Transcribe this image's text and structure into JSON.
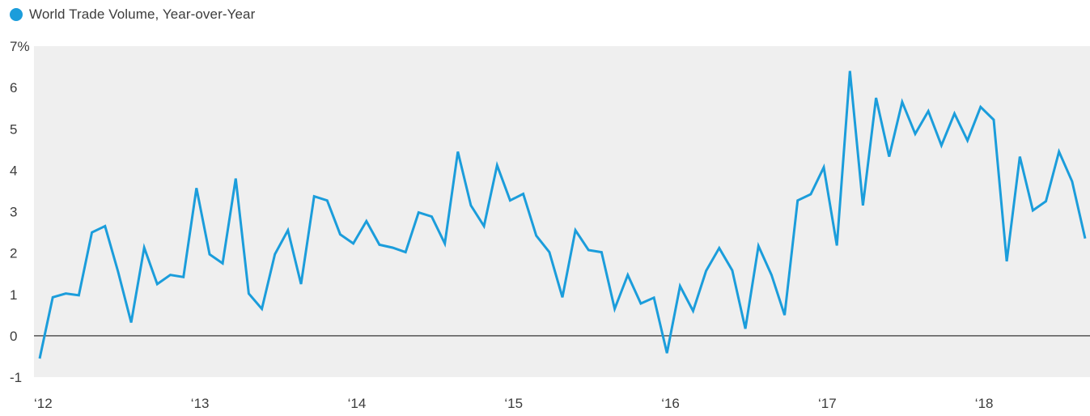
{
  "legend": {
    "label": "World Trade Volume, Year-over-Year",
    "color": "#1b9ddb"
  },
  "chart_data": {
    "type": "line",
    "title": "",
    "xlabel": "",
    "ylabel": "",
    "ylim": [
      -1,
      7
    ],
    "y_ticks": [
      -1,
      0,
      1,
      2,
      3,
      4,
      5,
      6,
      7
    ],
    "y_tick_labels": [
      "-1",
      "0",
      "1",
      "2",
      "3",
      "4",
      "5",
      "6",
      "7%"
    ],
    "x_ticks": [
      "‘12",
      "‘13",
      "‘14",
      "‘15",
      "‘16",
      "‘17",
      "‘18"
    ],
    "x_range": [
      "2012-01",
      "2018-09"
    ],
    "grid": false,
    "zero_line": true,
    "plot_background": "#efefef",
    "line_color": "#1b9ddb",
    "zero_line_color": "#555555",
    "series": [
      {
        "name": "World Trade Volume, Year-over-Year",
        "x": [
          "2012-01",
          "2012-02",
          "2012-03",
          "2012-04",
          "2012-05",
          "2012-06",
          "2012-07",
          "2012-08",
          "2012-09",
          "2012-10",
          "2012-11",
          "2012-12",
          "2013-01",
          "2013-02",
          "2013-03",
          "2013-04",
          "2013-05",
          "2013-06",
          "2013-07",
          "2013-08",
          "2013-09",
          "2013-10",
          "2013-11",
          "2013-12",
          "2014-01",
          "2014-02",
          "2014-03",
          "2014-04",
          "2014-05",
          "2014-06",
          "2014-07",
          "2014-08",
          "2014-09",
          "2014-10",
          "2014-11",
          "2014-12",
          "2015-01",
          "2015-02",
          "2015-03",
          "2015-04",
          "2015-05",
          "2015-06",
          "2015-07",
          "2015-08",
          "2015-09",
          "2015-10",
          "2015-11",
          "2015-12",
          "2016-01",
          "2016-02",
          "2016-03",
          "2016-04",
          "2016-05",
          "2016-06",
          "2016-07",
          "2016-08",
          "2016-09",
          "2016-10",
          "2016-11",
          "2016-12",
          "2017-01",
          "2017-02",
          "2017-03",
          "2017-04",
          "2017-05",
          "2017-06",
          "2017-07",
          "2017-08",
          "2017-09",
          "2017-10",
          "2017-11",
          "2017-12",
          "2018-01",
          "2018-02",
          "2018-03",
          "2018-04",
          "2018-05",
          "2018-06",
          "2018-07",
          "2018-08",
          "2018-09"
        ],
        "values": [
          -0.55,
          0.93,
          1.02,
          0.98,
          2.5,
          2.65,
          1.55,
          0.32,
          2.13,
          1.25,
          1.47,
          1.42,
          3.57,
          1.97,
          1.75,
          3.8,
          1.02,
          0.65,
          1.97,
          2.55,
          1.25,
          3.37,
          3.27,
          2.45,
          2.23,
          2.77,
          2.2,
          2.13,
          2.02,
          2.98,
          2.88,
          2.23,
          4.45,
          3.15,
          2.65,
          4.12,
          3.27,
          3.43,
          2.42,
          2.02,
          0.93,
          2.55,
          2.07,
          2.02,
          0.65,
          1.47,
          0.78,
          0.92,
          -0.42,
          1.2,
          0.6,
          1.57,
          2.12,
          1.58,
          0.17,
          2.17,
          1.47,
          0.5,
          3.27,
          3.42,
          4.07,
          2.18,
          6.4,
          3.15,
          5.75,
          4.33,
          5.65,
          4.88,
          5.43,
          4.6,
          5.37,
          4.72,
          5.53,
          5.22,
          1.8,
          4.33,
          3.03,
          3.25,
          4.45,
          3.73,
          2.35
        ]
      }
    ]
  }
}
